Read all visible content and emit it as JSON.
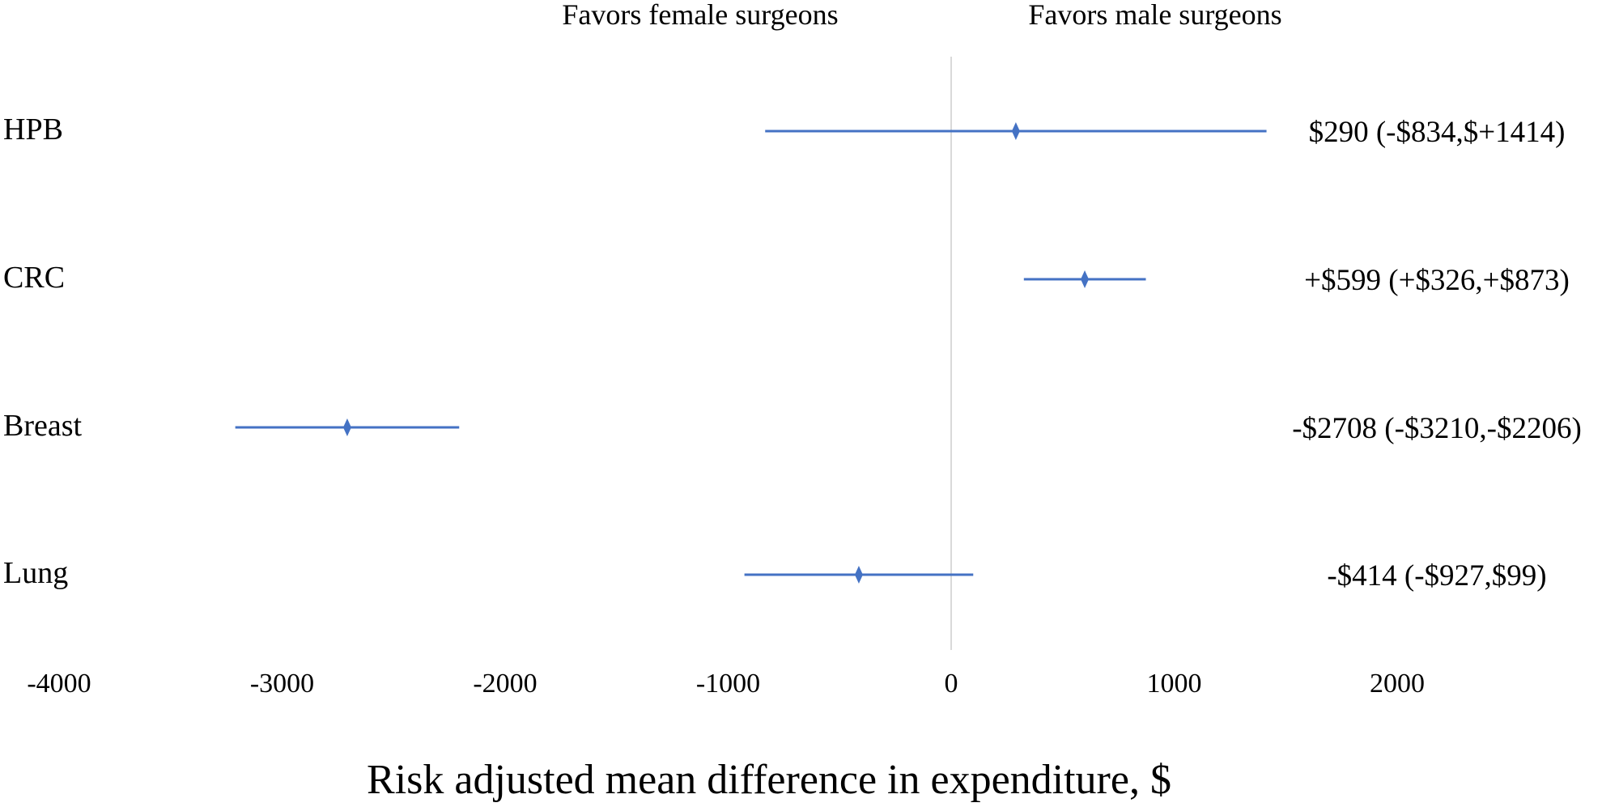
{
  "chart_data": {
    "type": "forest",
    "header_left": "Favors female surgeons",
    "header_right": "Favors male surgeons",
    "xlabel": "Risk adjusted mean difference in expenditure, $",
    "xlim": [
      -4000,
      2900
    ],
    "xticks": [
      "-4000",
      "-3000",
      "-2000",
      "-1000",
      "0",
      "1000",
      "2000"
    ],
    "xtick_values": [
      -4000,
      -3000,
      -2000,
      -1000,
      0,
      1000,
      2000
    ],
    "reference_line": 0,
    "categories": [
      "HPB",
      "CRC",
      "Breast",
      "Lung"
    ],
    "series": [
      {
        "name": "HPB",
        "estimate": 290,
        "lower": -834,
        "upper": 1414,
        "label": "$290 (-$834,$+1414)"
      },
      {
        "name": "CRC",
        "estimate": 599,
        "lower": 326,
        "upper": 873,
        "label": "+$599 (+$326,+$873)"
      },
      {
        "name": "Breast",
        "estimate": -2708,
        "lower": -3210,
        "upper": -2206,
        "label": "-$2708 (-$3210,-$2206)"
      },
      {
        "name": "Lung",
        "estimate": -414,
        "lower": -927,
        "upper": 99,
        "label": "-$414 (-$927,$99)"
      }
    ],
    "colors": {
      "interval": "#4472C4",
      "marker": "#4472C4",
      "reference": "#D9D9D9"
    }
  }
}
